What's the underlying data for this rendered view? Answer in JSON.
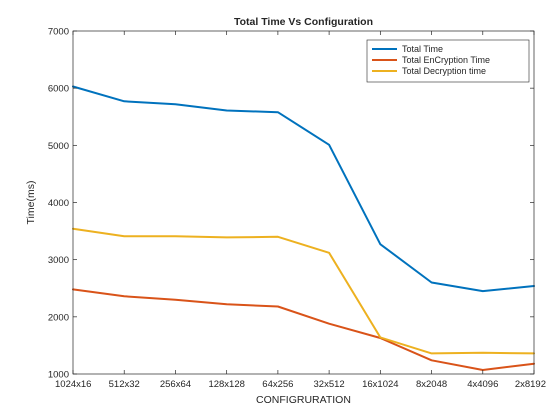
{
  "chart_data": {
    "type": "line",
    "title": "Total Time Vs Configuration",
    "xlabel": "CONFIGRURATION",
    "ylabel": "Time(ms)",
    "ylim": [
      1000,
      7000
    ],
    "yticks": [
      1000,
      2000,
      3000,
      4000,
      5000,
      6000,
      7000
    ],
    "grid": false,
    "legend_position": "top-right",
    "categories": [
      "1024x16",
      "512x32",
      "256x64",
      "128x128",
      "64x256",
      "32x512",
      "16x1024",
      "8x2048",
      "4x4096",
      "2x8192"
    ],
    "series": [
      {
        "name": "Total Time",
        "color": "#0072bd",
        "values": [
          6030,
          5770,
          5720,
          5610,
          5580,
          5010,
          3270,
          2600,
          2450,
          2540
        ]
      },
      {
        "name": "Total EnCryption Time",
        "color": "#d95319",
        "values": [
          2480,
          2360,
          2300,
          2220,
          2180,
          1880,
          1630,
          1240,
          1070,
          1180
        ]
      },
      {
        "name": "Total Decryption time",
        "color": "#edb120",
        "values": [
          3540,
          3410,
          3410,
          3390,
          3400,
          3120,
          1640,
          1360,
          1370,
          1360
        ]
      }
    ]
  }
}
